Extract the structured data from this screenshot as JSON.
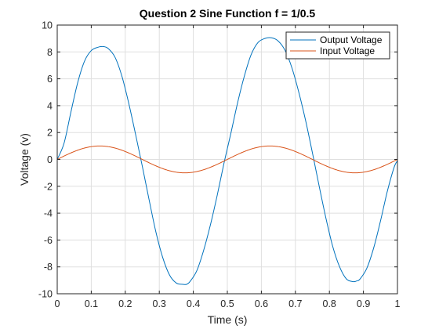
{
  "chart_data": {
    "type": "line",
    "title": "Question 2 Sine Function f = 1/0.5",
    "xlabel": "Time (s)",
    "ylabel": "Voltage (v)",
    "xlim": [
      0,
      1
    ],
    "ylim": [
      -10,
      10
    ],
    "xticks": [
      "0",
      "0.1",
      "0.2",
      "0.3",
      "0.4",
      "0.5",
      "0.6",
      "0.7",
      "0.8",
      "0.9",
      "1"
    ],
    "yticks": [
      "-10",
      "-8",
      "-6",
      "-4",
      "-2",
      "0",
      "2",
      "4",
      "6",
      "8",
      "10"
    ],
    "grid": true,
    "legend_position": "top-right",
    "series": [
      {
        "name": "Output Voltage",
        "color": "#0072BD",
        "x": [
          0,
          0.02,
          0.04,
          0.06,
          0.08,
          0.1,
          0.12,
          0.135,
          0.15,
          0.17,
          0.19,
          0.21,
          0.23,
          0.25,
          0.27,
          0.29,
          0.31,
          0.33,
          0.35,
          0.37,
          0.38,
          0.39,
          0.41,
          0.43,
          0.45,
          0.47,
          0.49,
          0.51,
          0.53,
          0.55,
          0.57,
          0.59,
          0.61,
          0.63,
          0.65,
          0.67,
          0.69,
          0.71,
          0.73,
          0.75,
          0.77,
          0.79,
          0.81,
          0.83,
          0.85,
          0.87,
          0.88,
          0.89,
          0.91,
          0.93,
          0.95,
          0.97,
          0.99,
          1.0
        ],
        "y": [
          0,
          1.2,
          3.5,
          5.7,
          7.3,
          8.1,
          8.35,
          8.4,
          8.25,
          7.6,
          6.2,
          4.2,
          1.9,
          -0.5,
          -3.0,
          -5.4,
          -7.3,
          -8.6,
          -9.2,
          -9.3,
          -9.3,
          -9.1,
          -8.3,
          -6.8,
          -4.9,
          -2.7,
          -0.3,
          1.9,
          4.2,
          6.2,
          7.8,
          8.7,
          9.0,
          9.05,
          8.8,
          8.1,
          6.8,
          5.0,
          2.9,
          0.5,
          -2.0,
          -4.4,
          -6.5,
          -8.0,
          -8.9,
          -9.1,
          -9.05,
          -8.9,
          -8.1,
          -6.6,
          -4.6,
          -2.4,
          -0.6,
          -0.1
        ]
      },
      {
        "name": "Input Voltage",
        "color": "#D95319",
        "amplitude": 1,
        "frequency_hz": 2
      }
    ]
  }
}
